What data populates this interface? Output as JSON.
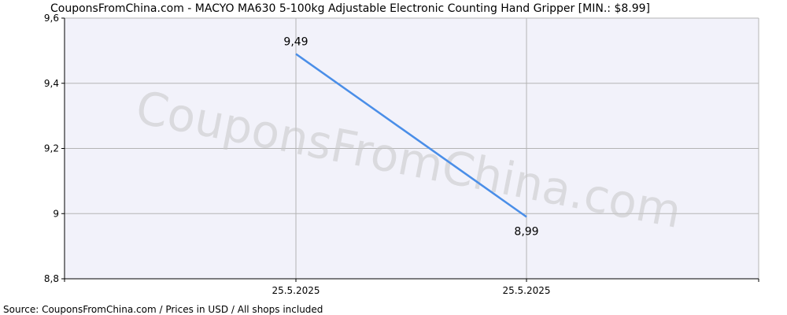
{
  "chart_data": {
    "type": "line",
    "title": "CouponsFromChina.com - MACYO MA630 5-100kg Adjustable Electronic Counting Hand Gripper [MIN.: $8.99]",
    "x": [
      "25.5.2025",
      "25.5.2025"
    ],
    "series": [
      {
        "values": [
          9.49,
          8.99
        ],
        "data_labels": [
          "9,49",
          "8,99"
        ],
        "color": "#4a8ee8"
      }
    ],
    "ylim": [
      8.8,
      9.6
    ],
    "yticks": [
      8.8,
      9.0,
      9.2,
      9.4,
      9.6
    ],
    "ytick_labels": [
      "8,8",
      "9",
      "9,2",
      "9,4",
      "9,6"
    ],
    "xtick_labels": [
      "25.5.2025",
      "25.5.2025"
    ],
    "grid": true,
    "xlabel": "",
    "ylabel": "",
    "watermark": "CouponsFromChina.com",
    "source": "Source: CouponsFromChina.com / Prices in USD / All shops included",
    "colors": {
      "plot_background": "#f2f2fa",
      "grid": "#b4b4b4",
      "axis": "#000000",
      "line": "#4a8ee8"
    }
  }
}
